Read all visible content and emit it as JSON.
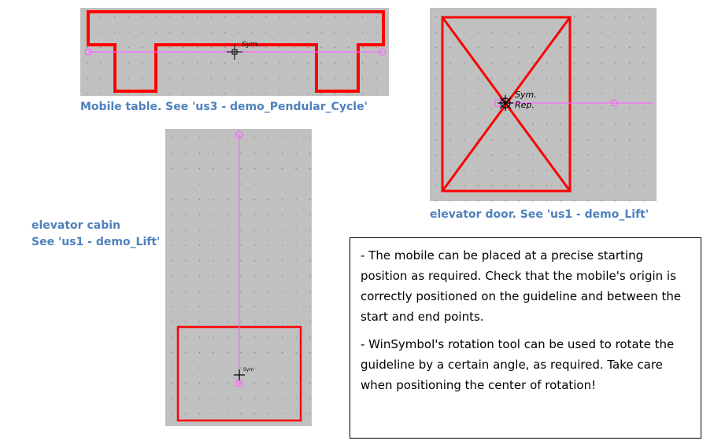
{
  "colors": {
    "panel": "#c0c0c0",
    "outline": "#ff0000",
    "guide": "#ff66ff",
    "caption": "#4f81bd"
  },
  "mobile_table": {
    "caption": "Mobile table. See 'us3 - demo_Pendular_Cycle'",
    "sym_label": "Sym."
  },
  "elevator_door": {
    "caption": "elevator door. See 'us1 - demo_Lift'",
    "sym_label": "Sym.",
    "rep_label": "Rep."
  },
  "elevator_cabin": {
    "caption_line1": "elevator cabin",
    "caption_line2": "See 'us1 - demo_Lift'",
    "sym_label": "Sym"
  },
  "notes": {
    "paragraph1": "- The mobile can be placed at a precise starting position as required. Check that the mobile's origin is correctly positioned on the guideline and between the start and end points.",
    "paragraph2": "- WinSymbol's rotation tool can be used to rotate the guideline by a certain angle, as required. Take care when positioning the center of rotation!"
  }
}
